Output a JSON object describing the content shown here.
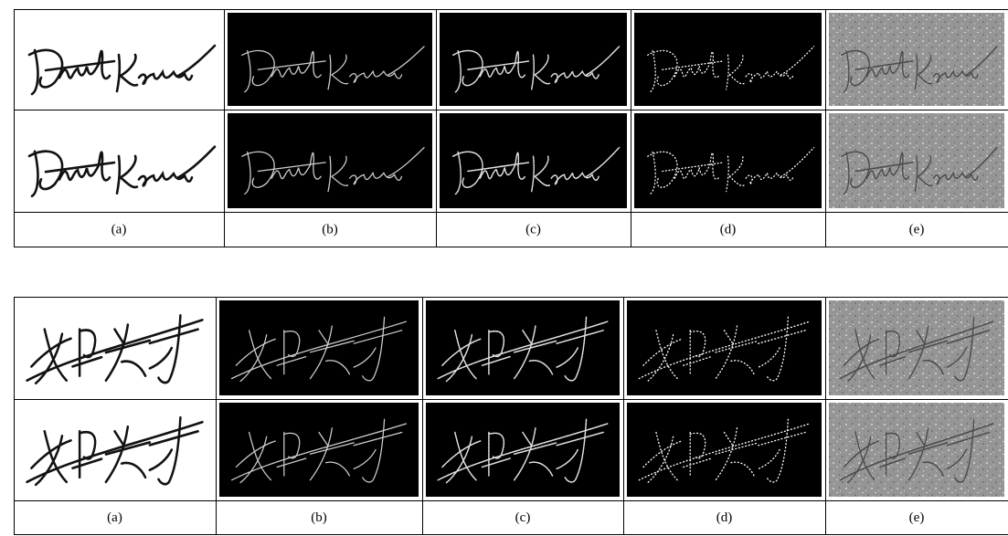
{
  "figures": [
    {
      "labels": [
        "(a)",
        "(b)",
        "(c)",
        "(d)",
        "(e)"
      ]
    },
    {
      "labels": [
        "(a)",
        "(b)",
        "(c)",
        "(d)",
        "(e)"
      ]
    }
  ]
}
